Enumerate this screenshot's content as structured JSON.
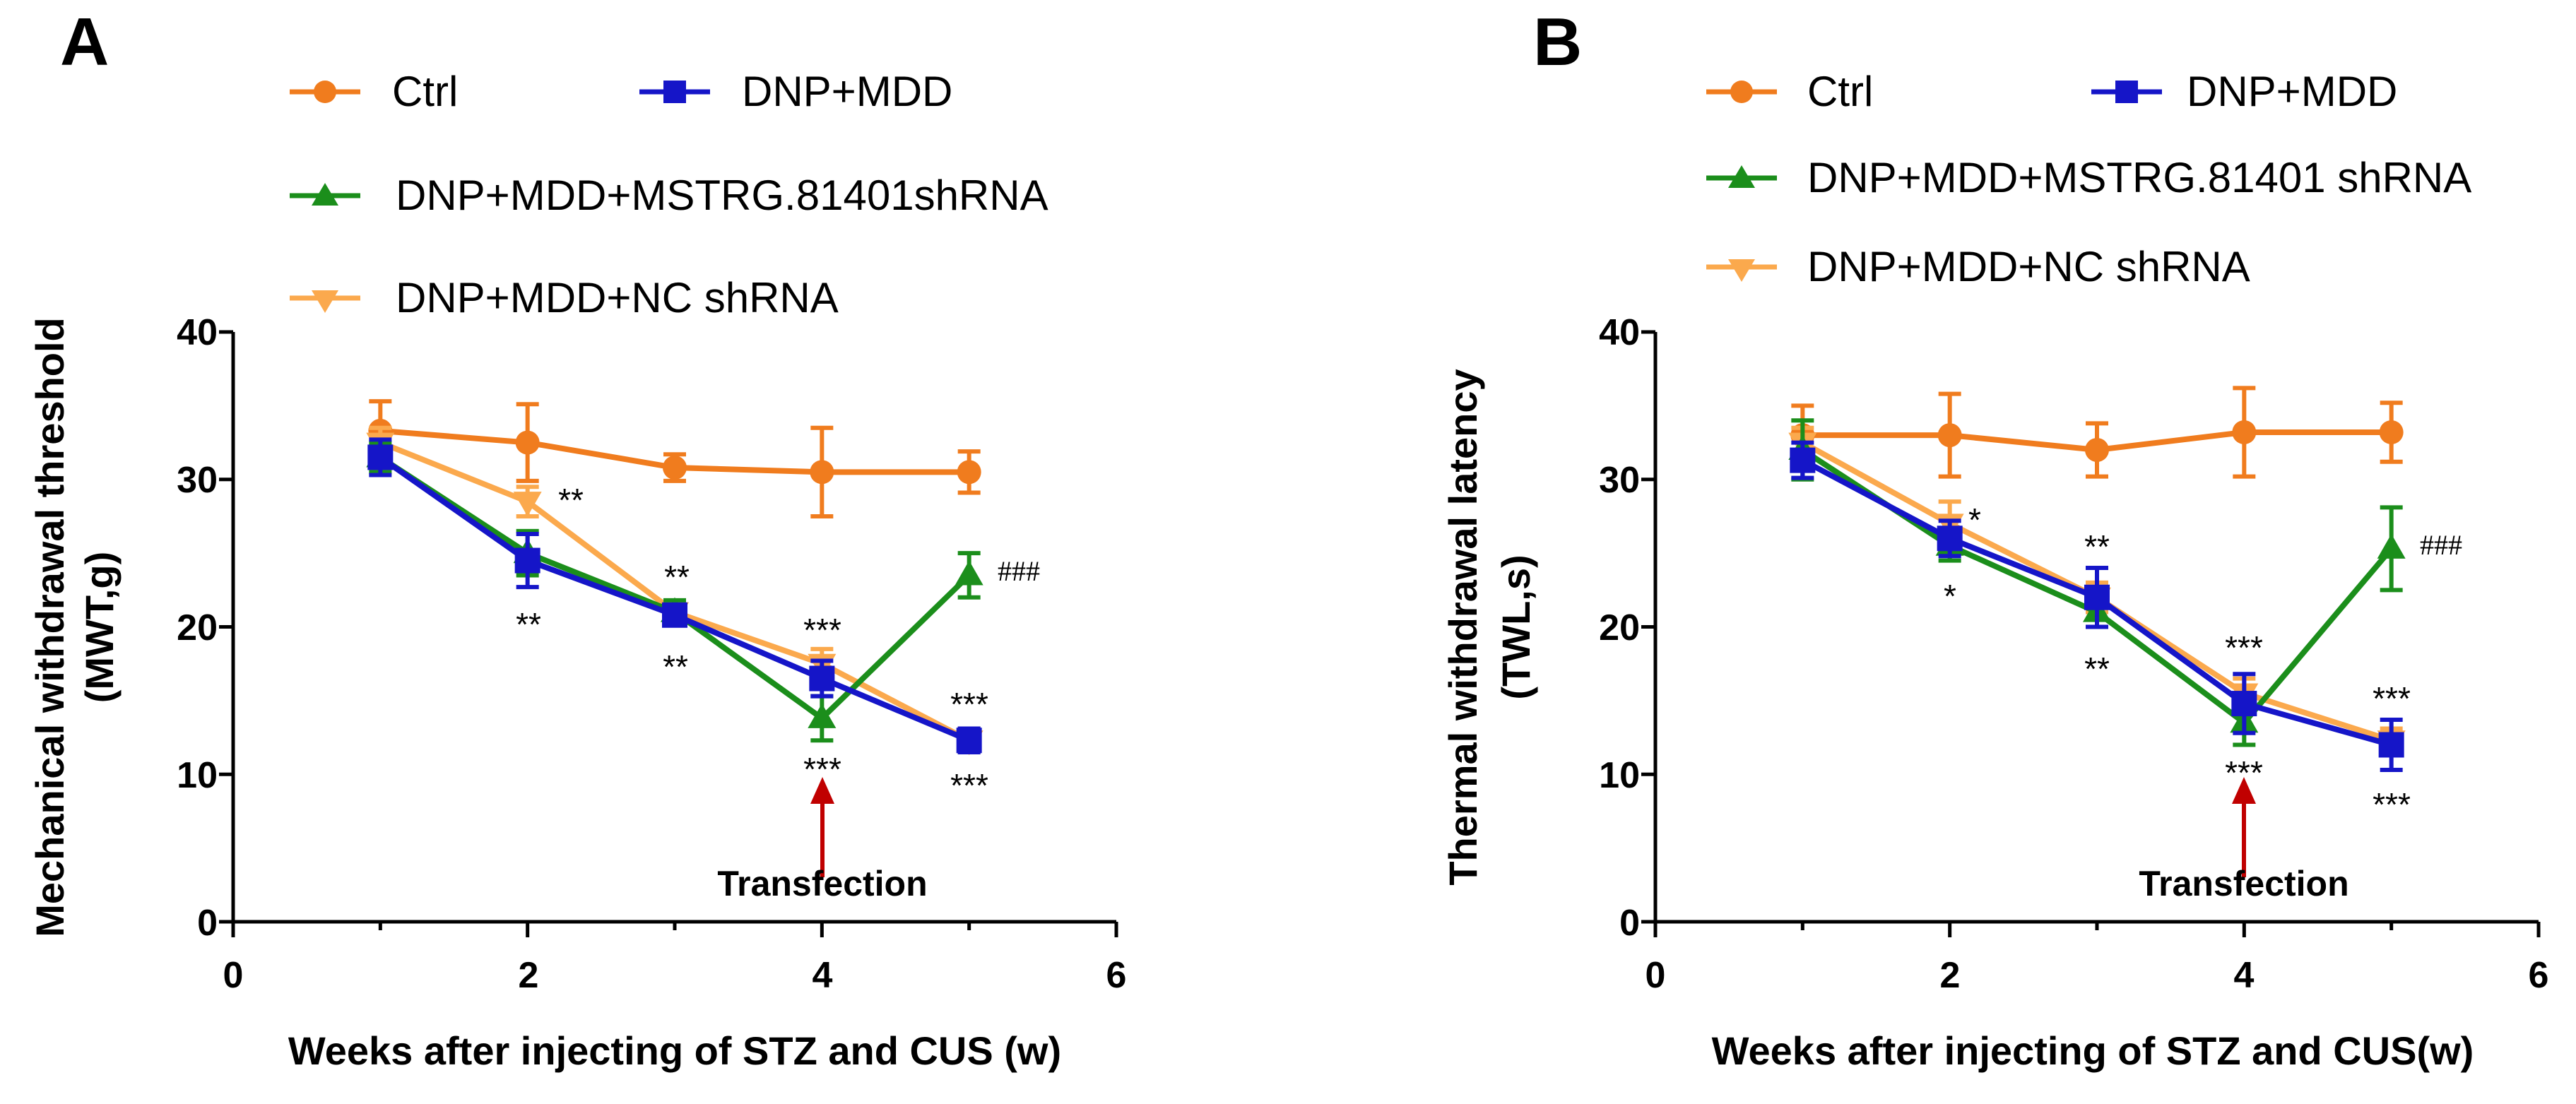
{
  "colors": {
    "ctrl": "#F07C1E",
    "dnp_mdd": "#1515C8",
    "shrna": "#1B8E1B",
    "nc": "#FBA94D",
    "arrow": "#C00000"
  },
  "chart_data": [
    {
      "type": "line",
      "panel_label": "A",
      "title": "",
      "xlabel": "Weeks after injecting of STZ and CUS (w)",
      "ylabel_line1": "Mechanical withdrawal threshold",
      "ylabel_line2": "(MWT,g)",
      "xlim": [
        0,
        6
      ],
      "ylim": [
        0,
        40
      ],
      "xticks": [
        "0",
        "2",
        "4",
        "6"
      ],
      "yticks": [
        "0",
        "10",
        "20",
        "30",
        "40"
      ],
      "legend": [
        "Ctrl",
        "DNP+MDD",
        "DNP+MDD+MSTRG.81401shRNA",
        "DNP+MDD+NC shRNA"
      ],
      "series": [
        {
          "name": "Ctrl",
          "color_key": "ctrl",
          "marker": "circle",
          "x": [
            1,
            2,
            3,
            4,
            5
          ],
          "y": [
            33.3,
            32.5,
            30.8,
            30.5,
            30.5
          ],
          "err": [
            2.0,
            2.6,
            0.9,
            3.0,
            1.4
          ]
        },
        {
          "name": "DNP+MDD+NC shRNA",
          "color_key": "nc",
          "marker": "triangle-down",
          "x": [
            1,
            2,
            3,
            4,
            5
          ],
          "y": [
            32.5,
            28.5,
            21.0,
            17.5,
            12.3
          ],
          "err": [
            1.0,
            1.0,
            0.7,
            1.0,
            0.8
          ]
        },
        {
          "name": "DNP+MDD+MSTRG.81401shRNA",
          "color_key": "shrna",
          "marker": "triangle-up",
          "x": [
            1,
            2,
            3,
            4,
            5
          ],
          "y": [
            31.5,
            25.0,
            21.0,
            13.8,
            23.5
          ],
          "err": [
            1.0,
            1.5,
            0.8,
            1.5,
            1.5
          ]
        },
        {
          "name": "DNP+MDD",
          "color_key": "dnp_mdd",
          "marker": "square",
          "x": [
            1,
            2,
            3,
            4,
            5
          ],
          "y": [
            31.5,
            24.5,
            20.8,
            16.5,
            12.3
          ],
          "err": [
            1.2,
            1.8,
            0.6,
            1.2,
            0.8
          ]
        }
      ],
      "annotations": [
        {
          "text": "**",
          "x": 2.32,
          "y": 28.8,
          "kind": "sig"
        },
        {
          "text": "**",
          "x": 2.0,
          "y": 20.2,
          "kind": "sig"
        },
        {
          "text": "**",
          "x": 3.15,
          "y": 22.8,
          "kind": "sig"
        },
        {
          "text": "**",
          "x": 3.0,
          "y": 16.7,
          "kind": "sig"
        },
        {
          "text": "***",
          "x": 4.0,
          "y": 19.2,
          "kind": "sig"
        },
        {
          "text": "***",
          "x": 4.0,
          "y": 10.0,
          "kind": "sig"
        },
        {
          "text": "***",
          "x": 5.0,
          "y": 14.5,
          "kind": "sig"
        },
        {
          "text": "***",
          "x": 5.0,
          "y": 9.0,
          "kind": "sig"
        },
        {
          "text": "###",
          "x": 5.33,
          "y": 23.8,
          "kind": "hash"
        }
      ],
      "arrow": {
        "x": 4,
        "y_from": 3.0,
        "y_to": 10.0
      },
      "arrow_label": {
        "text": "Transfection",
        "x": 4.0,
        "y": 1.5
      }
    },
    {
      "type": "line",
      "panel_label": "B",
      "title": "",
      "xlabel": "Weeks after injecting of STZ and CUS(w)",
      "ylabel_line1": "Thermal withdrawal latency",
      "ylabel_line2": "(TWL,s)",
      "xlim": [
        0,
        6
      ],
      "ylim": [
        0,
        40
      ],
      "xticks": [
        "0",
        "2",
        "4",
        "6"
      ],
      "yticks": [
        "0",
        "10",
        "20",
        "30",
        "40"
      ],
      "legend": [
        "Ctrl",
        "DNP+MDD",
        "DNP+MDD+MSTRG.81401 shRNA",
        "DNP+MDD+NC shRNA"
      ],
      "series": [
        {
          "name": "Ctrl",
          "color_key": "ctrl",
          "marker": "circle",
          "x": [
            1,
            2,
            3,
            4,
            5
          ],
          "y": [
            33.0,
            33.0,
            32.0,
            33.2,
            33.2
          ],
          "err": [
            2.0,
            2.8,
            1.8,
            3.0,
            2.0
          ]
        },
        {
          "name": "DNP+MDD+NC shRNA",
          "color_key": "nc",
          "marker": "triangle-down",
          "x": [
            1,
            2,
            3,
            4,
            5
          ],
          "y": [
            32.5,
            27.0,
            22.0,
            15.5,
            12.3
          ],
          "err": [
            1.0,
            1.5,
            1.0,
            1.0,
            0.8
          ]
        },
        {
          "name": "DNP+MDD+MSTRG.81401 shRNA",
          "color_key": "shrna",
          "marker": "triangle-up",
          "x": [
            1,
            2,
            3,
            4,
            5
          ],
          "y": [
            32.0,
            25.5,
            21.0,
            13.5,
            25.3
          ],
          "err": [
            2.0,
            1.0,
            1.0,
            1.5,
            2.8
          ]
        },
        {
          "name": "DNP+MDD",
          "color_key": "dnp_mdd",
          "marker": "square",
          "x": [
            1,
            2,
            3,
            4,
            5
          ],
          "y": [
            31.3,
            26.0,
            22.0,
            14.8,
            12.0
          ],
          "err": [
            1.2,
            1.2,
            2.0,
            2.0,
            1.7
          ]
        }
      ],
      "annotations": [
        {
          "text": "*",
          "x": 2.18,
          "y": 27.5,
          "kind": "sig"
        },
        {
          "text": "*",
          "x": 2.0,
          "y": 21.5,
          "kind": "sig"
        },
        {
          "text": "**",
          "x": 3.0,
          "y": 25.5,
          "kind": "sig"
        },
        {
          "text": "**",
          "x": 3.0,
          "y": 16.5,
          "kind": "sig"
        },
        {
          "text": "***",
          "x": 4.0,
          "y": 18.0,
          "kind": "sig"
        },
        {
          "text": "***",
          "x": 4.0,
          "y": 9.8,
          "kind": "sig"
        },
        {
          "text": "***",
          "x": 5.0,
          "y": 15.0,
          "kind": "sig"
        },
        {
          "text": "***",
          "x": 5.0,
          "y": 7.8,
          "kind": "sig"
        },
        {
          "text": "###",
          "x": 5.33,
          "y": 25.5,
          "kind": "hash"
        }
      ],
      "arrow": {
        "x": 4,
        "y_from": 3.0,
        "y_to": 10.0
      },
      "arrow_label": {
        "text": "Transfection",
        "x": 4.0,
        "y": 1.5
      }
    }
  ]
}
